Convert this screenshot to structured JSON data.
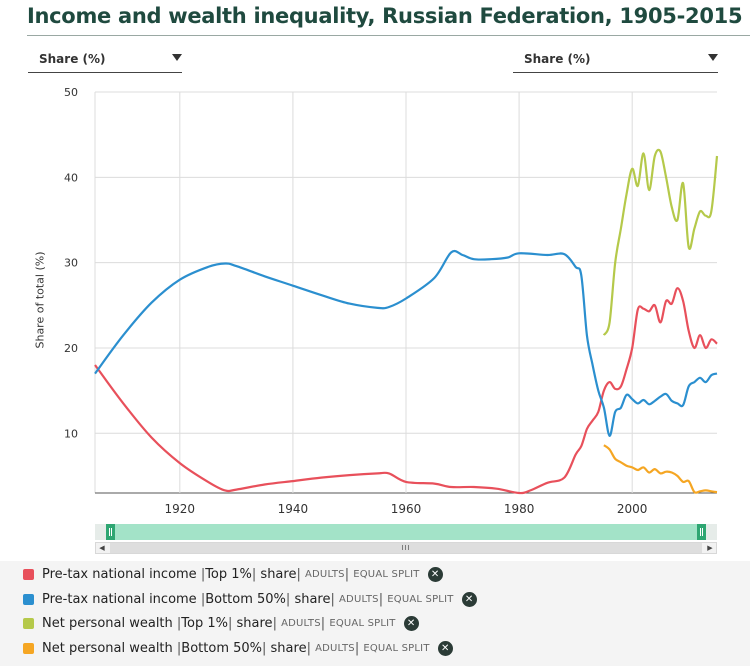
{
  "title": "Income and wealth inequality, Russian Federation, 1905-2015",
  "selectors": {
    "left": {
      "label": "Share (%)"
    },
    "right": {
      "label": "Share (%)"
    }
  },
  "navigator": {
    "scroll_grip": "III",
    "left_arrow": "◀",
    "right_arrow": "▶"
  },
  "legend": [
    {
      "measure": "Pre-tax national income",
      "group": "Top 1%",
      "metric": "share",
      "pop": "ADULTS",
      "split": "EQUAL SPLIT",
      "color": "#e8505b"
    },
    {
      "measure": "Pre-tax national income",
      "group": "Bottom 50%",
      "metric": "share",
      "pop": "ADULTS",
      "split": "EQUAL SPLIT",
      "color": "#2b8fcf"
    },
    {
      "measure": "Net personal wealth",
      "group": "Top 1%",
      "metric": "share",
      "pop": "ADULTS",
      "split": "EQUAL SPLIT",
      "color": "#b5c94a"
    },
    {
      "measure": "Net personal wealth",
      "group": "Bottom 50%",
      "metric": "share",
      "pop": "ADULTS",
      "split": "EQUAL SPLIT",
      "color": "#f5a623"
    }
  ],
  "chart_data": {
    "type": "line",
    "title": "Income and wealth inequality, Russian Federation, 1905-2015",
    "ylabel": "Share of total (%)",
    "xlabel": "",
    "xlim": [
      1905,
      2015
    ],
    "ylim": [
      3,
      50
    ],
    "x_ticks": [
      1920,
      1940,
      1960,
      1980,
      2000
    ],
    "y_ticks": [
      10,
      20,
      30,
      40,
      50
    ],
    "grid": true,
    "series": [
      {
        "name": "Pre-tax national income | Top 1% | share | ADULTS | EQUAL SPLIT",
        "color": "#e8505b",
        "points": [
          [
            1905,
            18
          ],
          [
            1910,
            13.5
          ],
          [
            1915,
            9.5
          ],
          [
            1920,
            6.5
          ],
          [
            1925,
            4.3
          ],
          [
            1928,
            3.3
          ],
          [
            1930,
            3.4
          ],
          [
            1935,
            4
          ],
          [
            1940,
            4.4
          ],
          [
            1945,
            4.8
          ],
          [
            1950,
            5.1
          ],
          [
            1955,
            5.3
          ],
          [
            1957,
            5.3
          ],
          [
            1960,
            4.3
          ],
          [
            1965,
            4.1
          ],
          [
            1968,
            3.7
          ],
          [
            1972,
            3.7
          ],
          [
            1976,
            3.5
          ],
          [
            1980,
            3
          ],
          [
            1982,
            3.3
          ],
          [
            1985,
            4.2
          ],
          [
            1988,
            4.8
          ],
          [
            1990,
            7.5
          ],
          [
            1991,
            8.5
          ],
          [
            1992,
            10.5
          ],
          [
            1993,
            11.5
          ],
          [
            1994,
            12.5
          ],
          [
            1995,
            15
          ],
          [
            1996,
            16
          ],
          [
            1997,
            15.2
          ],
          [
            1998,
            15.5
          ],
          [
            1999,
            17.5
          ],
          [
            2000,
            20
          ],
          [
            2001,
            24.5
          ],
          [
            2002,
            24.6
          ],
          [
            2003,
            24.3
          ],
          [
            2004,
            25
          ],
          [
            2005,
            23
          ],
          [
            2006,
            25.5
          ],
          [
            2007,
            25.2
          ],
          [
            2008,
            27
          ],
          [
            2009,
            25.5
          ],
          [
            2010,
            22
          ],
          [
            2011,
            20
          ],
          [
            2012,
            21.5
          ],
          [
            2013,
            20
          ],
          [
            2014,
            21
          ],
          [
            2015,
            20.5
          ]
        ]
      },
      {
        "name": "Pre-tax national income | Bottom 50% | share | ADULTS | EQUAL SPLIT",
        "color": "#2b8fcf",
        "points": [
          [
            1905,
            17
          ],
          [
            1910,
            21.5
          ],
          [
            1915,
            25.3
          ],
          [
            1920,
            28
          ],
          [
            1925,
            29.5
          ],
          [
            1928,
            29.9
          ],
          [
            1930,
            29.6
          ],
          [
            1935,
            28.4
          ],
          [
            1940,
            27.3
          ],
          [
            1945,
            26.2
          ],
          [
            1950,
            25.2
          ],
          [
            1955,
            24.7
          ],
          [
            1957,
            24.8
          ],
          [
            1960,
            25.8
          ],
          [
            1965,
            28.2
          ],
          [
            1968,
            31.2
          ],
          [
            1970,
            30.9
          ],
          [
            1972,
            30.4
          ],
          [
            1975,
            30.4
          ],
          [
            1978,
            30.6
          ],
          [
            1980,
            31.1
          ],
          [
            1985,
            30.9
          ],
          [
            1988,
            31
          ],
          [
            1990,
            29.5
          ],
          [
            1991,
            28.5
          ],
          [
            1992,
            21.5
          ],
          [
            1993,
            18
          ],
          [
            1994,
            15
          ],
          [
            1995,
            13
          ],
          [
            1996,
            9.7
          ],
          [
            1997,
            12.5
          ],
          [
            1998,
            13
          ],
          [
            1999,
            14.5
          ],
          [
            2000,
            14
          ],
          [
            2001,
            13.5
          ],
          [
            2002,
            13.9
          ],
          [
            2003,
            13.4
          ],
          [
            2004,
            13.8
          ],
          [
            2005,
            14.3
          ],
          [
            2006,
            14.6
          ],
          [
            2007,
            13.8
          ],
          [
            2008,
            13.5
          ],
          [
            2009,
            13.3
          ],
          [
            2010,
            15.5
          ],
          [
            2011,
            16
          ],
          [
            2012,
            16.5
          ],
          [
            2013,
            16
          ],
          [
            2014,
            16.8
          ],
          [
            2015,
            17
          ]
        ]
      },
      {
        "name": "Net personal wealth | Top 1% | share | ADULTS | EQUAL SPLIT",
        "color": "#b5c94a",
        "points": [
          [
            1995,
            21.5
          ],
          [
            1996,
            23
          ],
          [
            1997,
            30
          ],
          [
            1998,
            34
          ],
          [
            1999,
            38
          ],
          [
            2000,
            41
          ],
          [
            2001,
            39
          ],
          [
            2002,
            42.8
          ],
          [
            2003,
            38.5
          ],
          [
            2004,
            42.5
          ],
          [
            2005,
            43
          ],
          [
            2006,
            40
          ],
          [
            2007,
            36.5
          ],
          [
            2008,
            35
          ],
          [
            2009,
            39.3
          ],
          [
            2010,
            31.8
          ],
          [
            2011,
            34
          ],
          [
            2012,
            36
          ],
          [
            2013,
            35.5
          ],
          [
            2014,
            36
          ],
          [
            2015,
            42.5
          ]
        ]
      },
      {
        "name": "Net personal wealth | Bottom 50% | share | ADULTS | EQUAL SPLIT",
        "color": "#f5a623",
        "points": [
          [
            1995,
            8.6
          ],
          [
            1996,
            8.1
          ],
          [
            1997,
            7
          ],
          [
            1998,
            6.6
          ],
          [
            1999,
            6.2
          ],
          [
            2000,
            6
          ],
          [
            2001,
            5.7
          ],
          [
            2002,
            6
          ],
          [
            2003,
            5.4
          ],
          [
            2004,
            5.8
          ],
          [
            2005,
            5.3
          ],
          [
            2006,
            5.5
          ],
          [
            2007,
            5.4
          ],
          [
            2008,
            5
          ],
          [
            2009,
            4.3
          ],
          [
            2010,
            4.4
          ],
          [
            2011,
            3.1
          ],
          [
            2012,
            3.2
          ],
          [
            2013,
            3.3
          ],
          [
            2014,
            3.2
          ],
          [
            2015,
            3.1
          ]
        ]
      }
    ]
  }
}
